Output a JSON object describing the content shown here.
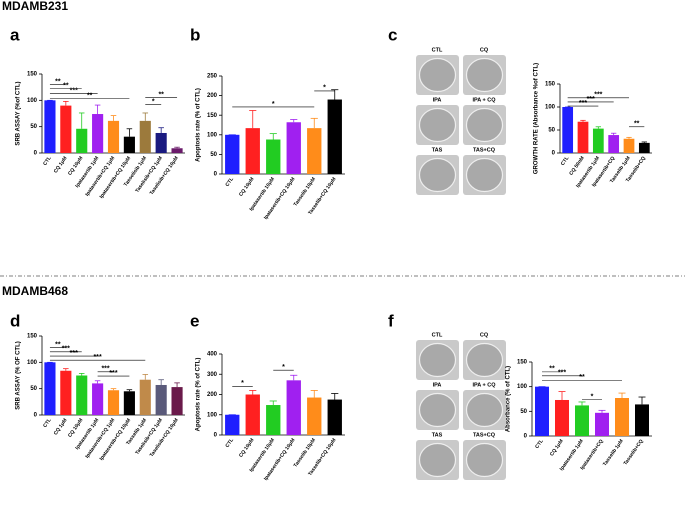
{
  "sections": [
    "MDAMB231",
    "MDAMB468"
  ],
  "panels": [
    "a",
    "b",
    "c",
    "d",
    "e",
    "f"
  ],
  "wells": {
    "c": [
      "CTL",
      "CQ",
      "IPA",
      "IPA + CQ",
      "TAS",
      "TAS+CQ"
    ],
    "f": [
      "CTL",
      "CQ",
      "IPA",
      "IPA + CQ",
      "TAS",
      "TAS+CQ"
    ]
  },
  "chart_data": [
    {
      "type": "bar",
      "ylabel": "SRB ASSAY (%of CTL)",
      "categories": [
        "CTL",
        "CQ 1μM",
        "CQ 10μM",
        "Ipatasertib 1μM",
        "Ipatasertib+CQ 1μM",
        "Ipatasertib+CQ 10μM",
        "Tasselisib 1μM",
        "Taselisib+CQ 1μM",
        "Taselisib+CQ 10μM"
      ],
      "values": [
        100,
        90,
        46,
        74,
        61,
        31,
        61,
        38,
        9
      ],
      "errors": [
        0,
        8,
        30,
        17,
        10,
        15,
        15,
        10,
        2
      ],
      "colors": [
        "#1f1fff",
        "#ff2020",
        "#22cc22",
        "#a020f0",
        "#ff8c1a",
        "#000000",
        "#9c7a3c",
        "#1a1a80",
        "#6a1a6a"
      ],
      "ylim": [
        0,
        150
      ],
      "yticks": [
        0,
        50,
        100,
        150
      ],
      "annotations": [
        {
          "label": "**",
          "from": "CTL",
          "to": "CQ 1μM",
          "y": 130
        },
        {
          "label": "**",
          "from": "CTL",
          "to": "CQ 10μM",
          "y": 122
        },
        {
          "label": "***",
          "from": "CTL",
          "to": "Ipatasertib 1μM",
          "y": 113
        },
        {
          "label": "**",
          "from": "CTL",
          "to": "Ipatasertib+CQ 10μM",
          "y": 103
        },
        {
          "label": "**",
          "from": "Tasselisib 1μM",
          "to": "Taselisib+CQ 10μM",
          "y": 105
        },
        {
          "label": "*",
          "from": "Tasselisib 1μM",
          "to": "Taselisib+CQ 1μM",
          "y": 92
        }
      ]
    },
    {
      "type": "bar",
      "ylabel": "Apoptosis rate (% of CTL)",
      "categories": [
        "CTL",
        "CQ 10μM",
        "Ipatasertib 10μM",
        "Ipatasertib+CQ 10μM",
        "Tasselib 10μM",
        "Tasselib+CQ 10μM"
      ],
      "values": [
        100,
        117,
        88,
        132,
        117,
        190
      ],
      "errors": [
        0,
        45,
        15,
        7,
        25,
        25
      ],
      "colors": [
        "#1f1fff",
        "#ff2020",
        "#22cc22",
        "#a020f0",
        "#ff8c1a",
        "#000000"
      ],
      "ylim": [
        0,
        250
      ],
      "yticks": [
        0,
        50,
        100,
        150,
        200,
        250
      ],
      "annotations": [
        {
          "label": "*",
          "from": "CTL",
          "to": "Tasselib 10μM",
          "y": 171
        },
        {
          "label": "*",
          "from": "Tasselib 10μM",
          "to": "Tasselib+CQ 10μM",
          "y": 212
        }
      ]
    },
    {
      "type": "bar",
      "ylabel": "GROWTH RATE (Absorbance %of CTL)",
      "categories": [
        "CTL",
        "CQ 50nM",
        "Ipatasertib 1μM",
        "Ipatasertib+CQ",
        "Tasselib 1μM",
        "Tasselib+CQ"
      ],
      "values": [
        100,
        68,
        53,
        39,
        31,
        22
      ],
      "errors": [
        0,
        3,
        4,
        4,
        3,
        2
      ],
      "colors": [
        "#1f1fff",
        "#ff2020",
        "#22cc22",
        "#a020f0",
        "#ff8c1a",
        "#000000"
      ],
      "ylim": [
        0,
        150
      ],
      "yticks": [
        0,
        50,
        100,
        150
      ],
      "annotations": [
        {
          "label": "***",
          "from": "CTL",
          "to": "Tasselib 1μM",
          "y": 120
        },
        {
          "label": "***",
          "from": "CTL",
          "to": "Ipatasertib+CQ",
          "y": 111
        },
        {
          "label": "***",
          "from": "CTL",
          "to": "Ipatasertib 1μM",
          "y": 102
        },
        {
          "label": "**",
          "from": "Tasselib 1μM",
          "to": "Tasselib+CQ",
          "y": 57
        }
      ]
    },
    {
      "type": "bar",
      "ylabel": "SRB ASSAY (% OF CTL)",
      "categories": [
        "CTL",
        "CQ 1μM",
        "CQ 10μM",
        "Ipatasertib 1μM",
        "Ipatasertib+CQ 1μM",
        "Ipatasertib+CQ 10μM",
        "Tasselib 1μM",
        "Taselisib+CQ 1μM",
        "Taselisib+CQ 10μM"
      ],
      "values": [
        100,
        84,
        75,
        60,
        47,
        45,
        67,
        57,
        53
      ],
      "errors": [
        0,
        4,
        4,
        5,
        3,
        3,
        10,
        10,
        8
      ],
      "colors": [
        "#1f1fff",
        "#ff2020",
        "#22cc22",
        "#a020f0",
        "#ff8c1a",
        "#000000",
        "#c08a4a",
        "#5a5a7a",
        "#6a1a4a"
      ],
      "ylim": [
        0,
        150
      ],
      "yticks": [
        0,
        50,
        100,
        150
      ],
      "annotations": [
        {
          "label": "**",
          "from": "CTL",
          "to": "CQ 1μM",
          "y": 128
        },
        {
          "label": "***",
          "from": "CTL",
          "to": "CQ 10μM",
          "y": 120
        },
        {
          "label": "***",
          "from": "CTL",
          "to": "Ipatasertib 1μM",
          "y": 112
        },
        {
          "label": "***",
          "from": "CTL",
          "to": "Tasselib 1μM",
          "y": 104
        },
        {
          "label": "***",
          "from": "Ipatasertib 1μM",
          "to": "Ipatasertib+CQ 1μM",
          "y": 82
        },
        {
          "label": "***",
          "from": "Ipatasertib 1μM",
          "to": "Ipatasertib+CQ 10μM",
          "y": 74
        }
      ]
    },
    {
      "type": "bar",
      "ylabel": "Apoptosis rate (% of CTL)",
      "categories": [
        "CTL",
        "CQ 10μM",
        "Ipatasertib 10μM",
        "Ipatasertib+CQ 10μM",
        "Tasselib 10μM",
        "Tasselib+CQ 10μM"
      ],
      "values": [
        100,
        200,
        148,
        270,
        185,
        175
      ],
      "errors": [
        0,
        20,
        20,
        25,
        35,
        30
      ],
      "colors": [
        "#1f1fff",
        "#ff2020",
        "#22cc22",
        "#a020f0",
        "#ff8c1a",
        "#000000"
      ],
      "ylim": [
        0,
        400
      ],
      "yticks": [
        0,
        100,
        200,
        300,
        400
      ],
      "annotations": [
        {
          "label": "*",
          "from": "CTL",
          "to": "CQ 10μM",
          "y": 240
        },
        {
          "label": "*",
          "from": "Ipatasertib 10μM",
          "to": "Ipatasertib+CQ 10μM",
          "y": 320
        }
      ]
    },
    {
      "type": "bar",
      "ylabel": "Absorbance (% of CTL)",
      "categories": [
        "CTL",
        "CQ 1μM",
        "Ipatasertib 1μM",
        "Ipatasertib+CQ",
        "Tasselib 1μM",
        "Tasselib+CQ"
      ],
      "values": [
        100,
        73,
        62,
        47,
        77,
        64
      ],
      "errors": [
        0,
        17,
        7,
        5,
        10,
        15
      ],
      "colors": [
        "#1f1fff",
        "#ff2020",
        "#22cc22",
        "#a020f0",
        "#ff8c1a",
        "#000000"
      ],
      "ylim": [
        0,
        150
      ],
      "yticks": [
        0,
        50,
        100,
        150
      ],
      "annotations": [
        {
          "label": "**",
          "from": "CTL",
          "to": "CQ 1μM",
          "y": 130
        },
        {
          "label": "***",
          "from": "CTL",
          "to": "Ipatasertib 1μM",
          "y": 122
        },
        {
          "label": "**",
          "from": "CTL",
          "to": "Tasselib 1μM",
          "y": 113
        },
        {
          "label": "*",
          "from": "Ipatasertib 1μM",
          "to": "Ipatasertib+CQ",
          "y": 74
        }
      ]
    }
  ]
}
